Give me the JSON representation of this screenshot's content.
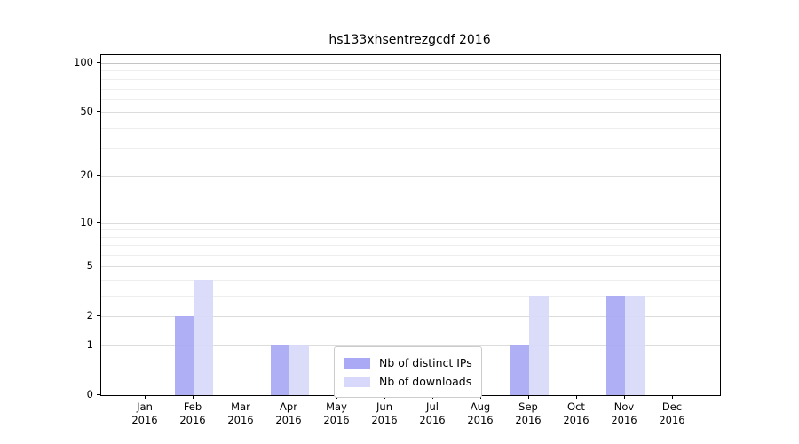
{
  "title": "hs133xhsentrezgcdf 2016",
  "chart_data": {
    "type": "bar",
    "title": "hs133xhsentrezgcdf 2016",
    "months": [
      "Jan",
      "Feb",
      "Mar",
      "Apr",
      "May",
      "Jun",
      "Jul",
      "Aug",
      "Sep",
      "Oct",
      "Nov",
      "Dec"
    ],
    "year": "2016",
    "series": [
      {
        "name": "Nb of distinct IPs",
        "color": "#a9a9f5",
        "values": [
          0,
          2,
          0,
          1,
          0,
          0,
          0,
          0,
          1,
          0,
          3,
          0
        ]
      },
      {
        "name": "Nb of downloads",
        "color": "#d8d8fa",
        "values": [
          0,
          4,
          0,
          1,
          0,
          0,
          0,
          0,
          3,
          0,
          3,
          0
        ]
      }
    ],
    "y_axis": {
      "scale": "log1p",
      "lim": [
        0,
        100
      ],
      "ticks": [
        0,
        1,
        2,
        5,
        10,
        20,
        50,
        100
      ],
      "minor_gridlines": [
        3,
        4,
        6,
        7,
        8,
        9,
        30,
        40,
        60,
        70,
        80,
        90
      ]
    },
    "legend_position": "lower center",
    "grid": "horizontal",
    "xlabel": "",
    "ylabel": "",
    "colors": {
      "axis": "#000000",
      "grid_major": "#dcdcdc",
      "grid_minor": "#eeeeee",
      "grid_top": "#c4c4c4",
      "background": "#ffffff",
      "legend_border": "#cccccc"
    }
  }
}
